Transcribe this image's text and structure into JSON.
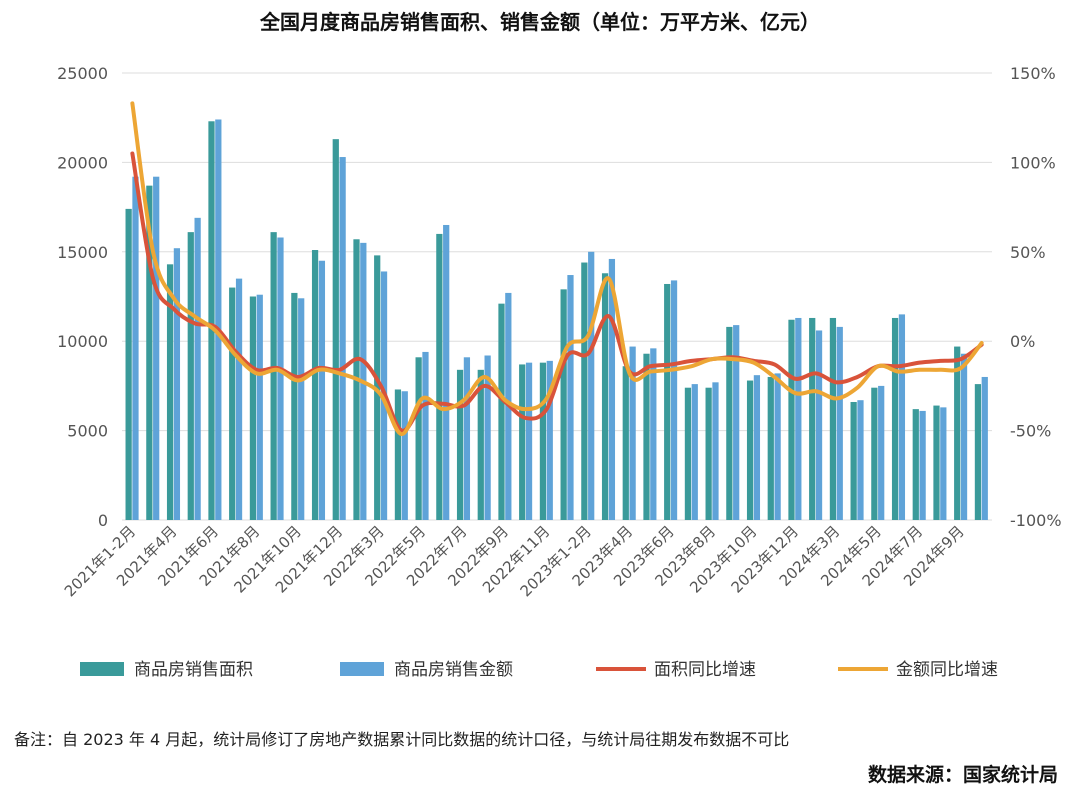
{
  "title": "全国月度商品房销售面积、销售金额（单位：万平方米、亿元）",
  "note": "备注：自 2023 年 4 月起，统计局修订了房地产数据累计同比数据的统计口径，与统计局往期发布数据不可比",
  "source": "数据来源：国家统计局",
  "colors": {
    "area_bar": "#3a9a9a",
    "amount_bar": "#5fa3d8",
    "area_line": "#d9533a",
    "amount_line": "#eda635",
    "grid": "#dddddd"
  },
  "chart_data": {
    "type": "bar",
    "categories": [
      "2021年1-2月",
      "2021年3月",
      "2021年4月",
      "2021年5月",
      "2021年6月",
      "2021年7月",
      "2021年8月",
      "2021年9月",
      "2021年10月",
      "2021年11月",
      "2021年12月",
      "2022年1-2月",
      "2022年3月",
      "2022年4月",
      "2022年5月",
      "2022年6月",
      "2022年7月",
      "2022年8月",
      "2022年9月",
      "2022年10月",
      "2022年11月",
      "2022年12月",
      "2023年1-2月",
      "2023年3月",
      "2023年4月",
      "2023年5月",
      "2023年6月",
      "2023年7月",
      "2023年8月",
      "2023年9月",
      "2023年10月",
      "2023年11月",
      "2023年12月",
      "2024年1-2月",
      "2024年3月",
      "2024年4月",
      "2024年5月",
      "2024年6月",
      "2024年7月",
      "2024年8月",
      "2024年9月",
      "2024年10月"
    ],
    "x_tick_labels": [
      "2021年1-2月",
      "2021年4月",
      "2021年6月",
      "2021年8月",
      "2021年10月",
      "2021年12月",
      "2022年3月",
      "2022年5月",
      "2022年7月",
      "2022年9月",
      "2022年11月",
      "2023年1-2月",
      "2023年4月",
      "2023年6月",
      "2023年8月",
      "2023年10月",
      "2023年12月",
      "2024年3月",
      "2024年5月",
      "2024年7月",
      "2024年9月"
    ],
    "y_ticks": [
      0,
      5000,
      10000,
      15000,
      20000,
      25000
    ],
    "y2_ticks": [
      "-100%",
      "-50%",
      "0%",
      "50%",
      "100%",
      "150%"
    ],
    "ylim": [
      0,
      25000
    ],
    "y2lim": [
      -100,
      150
    ],
    "series": [
      {
        "name": "商品房销售面积",
        "type": "bar",
        "axis": "left",
        "values": [
          17400,
          18700,
          14300,
          16100,
          22300,
          13000,
          12500,
          16100,
          12700,
          15100,
          21300,
          15700,
          14800,
          7300,
          9100,
          16000,
          8400,
          8400,
          12100,
          8700,
          8800,
          12900,
          14400,
          13800,
          8600,
          9300,
          13200,
          7400,
          7400,
          10800,
          7800,
          8000,
          11200,
          11300,
          11300,
          6600,
          7400,
          11300,
          6200,
          6400,
          9700,
          7600
        ]
      },
      {
        "name": "商品房销售金额",
        "type": "bar",
        "axis": "left",
        "values": [
          19200,
          19200,
          15200,
          16900,
          22400,
          13500,
          12600,
          15800,
          12400,
          14500,
          20300,
          15500,
          13900,
          7200,
          9400,
          16500,
          9100,
          9200,
          12700,
          8800,
          8900,
          13700,
          15000,
          14600,
          9700,
          9600,
          13400,
          7600,
          7700,
          10900,
          8100,
          8200,
          11300,
          10600,
          10800,
          6700,
          7500,
          11500,
          6100,
          6300,
          9300,
          8000
        ]
      },
      {
        "name": "面积同比增速",
        "type": "line",
        "axis": "right",
        "values": [
          105,
          35,
          18,
          10,
          8,
          -6,
          -16,
          -15,
          -20,
          -15,
          -16,
          -10,
          -25,
          -50,
          -36,
          -35,
          -36,
          -25,
          -34,
          -43,
          -38,
          -8,
          -7,
          14,
          -17,
          -14,
          -13,
          -11,
          -10,
          -9,
          -11,
          -13,
          -21,
          -18,
          -23,
          -20,
          -14,
          -14,
          -12,
          -11,
          -10,
          -2
        ]
      },
      {
        "name": "金额同比增速",
        "type": "line",
        "axis": "right",
        "values": [
          133,
          50,
          24,
          14,
          6,
          -8,
          -18,
          -16,
          -22,
          -16,
          -18,
          -22,
          -30,
          -52,
          -32,
          -38,
          -33,
          -20,
          -33,
          -38,
          -32,
          -3,
          3,
          35,
          -18,
          -17,
          -16,
          -14,
          -10,
          -10,
          -12,
          -20,
          -29,
          -28,
          -32,
          -26,
          -14,
          -17,
          -16,
          -16,
          -15,
          -1
        ]
      }
    ]
  }
}
